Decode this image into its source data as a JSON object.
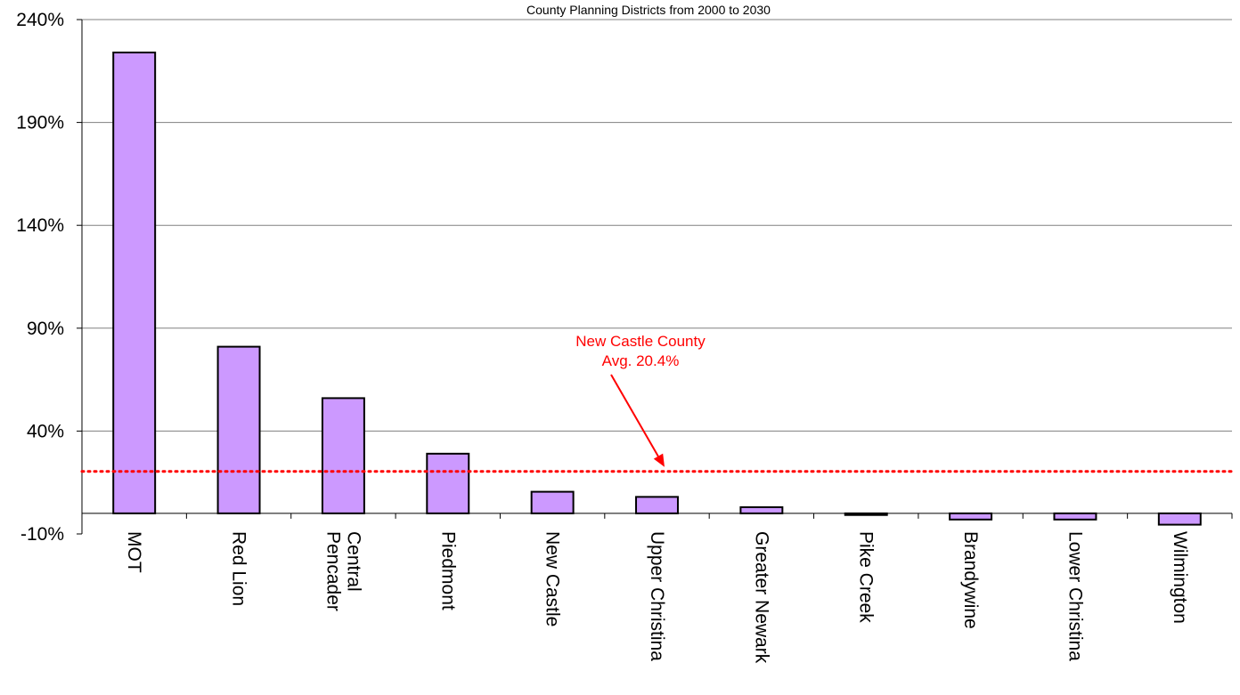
{
  "chart_data": {
    "type": "bar",
    "title": "County Planning Districts from 2000 to 2030",
    "categories": [
      "MOT",
      "Red Lion",
      "Central Pencader",
      "Piedmont",
      "New Castle",
      "Upper Christina",
      "Greater Newark",
      "Pike Creek",
      "Brandywine",
      "Lower Christina",
      "Wilmington"
    ],
    "category_lines": [
      [
        "MOT"
      ],
      [
        "Red Lion"
      ],
      [
        "Central",
        "Pencader"
      ],
      [
        "Piedmont"
      ],
      [
        "New Castle"
      ],
      [
        "Upper Christina"
      ],
      [
        "Greater Newark"
      ],
      [
        "Pike Creek"
      ],
      [
        "Brandywine"
      ],
      [
        "Lower Christina"
      ],
      [
        "Wilmington"
      ]
    ],
    "values": [
      224,
      81,
      56,
      29,
      10.5,
      8,
      3,
      -0.8,
      -3,
      -3,
      -5.5
    ],
    "ylim": [
      -10,
      240
    ],
    "yticks": [
      -10,
      40,
      90,
      140,
      190,
      240
    ],
    "ytick_labels": [
      "-10%",
      "40%",
      "90%",
      "140%",
      "190%",
      "240%"
    ],
    "average": {
      "value": 20.4,
      "label_line1": "New Castle County",
      "label_line2": "Avg. 20.4%"
    },
    "colors": {
      "bar_fill": "#cc99ff",
      "bar_stroke": "#000000",
      "average_line": "#ff0000",
      "gridline": "#808080"
    },
    "grid": true,
    "legend": "none"
  }
}
